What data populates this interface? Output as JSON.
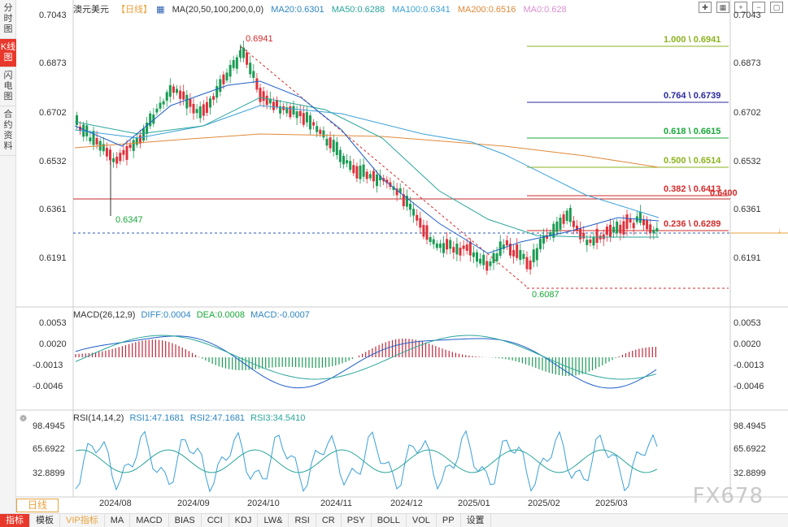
{
  "side_tabs": [
    "分时图",
    "K线图",
    "闪电图",
    "合约资料"
  ],
  "side_tab_active": 1,
  "header": {
    "symbol": "澳元美元",
    "timeframe": "【日线】",
    "ma_label": "MA(20,50,100,200,0,0)",
    "ma20": "MA20:0.6301",
    "ma50": "MA50:0.6288",
    "ma100": "MA100:0.6341",
    "ma200": "MA200:0.6516",
    "ma0": "MA0:0.628"
  },
  "price_axis": [
    "0.7043",
    "0.6873",
    "0.6702",
    "0.6532",
    "0.6361",
    "0.6191"
  ],
  "fib_levels": [
    {
      "label": "1.000 \\ 0.6941",
      "color": "#8bb31d"
    },
    {
      "label": "0.764 \\ 0.6739",
      "color": "#2a2a9e"
    },
    {
      "label": "0.618 \\ 0.6615",
      "color": "#19a83a"
    },
    {
      "label": "0.500 \\ 0.6514",
      "color": "#8bb31d"
    },
    {
      "label": "0.382 \\ 0.6413",
      "color": "#d42b2b"
    },
    {
      "label": "0.236 \\ 0.6289",
      "color": "#d42b2b"
    }
  ],
  "extra_level": "0.6400",
  "annotations": {
    "high": "0.6941",
    "low1": "0.6347",
    "low2": "0.6087"
  },
  "macd": {
    "title": "MACD(26,12,9)",
    "diff": "DIFF:0.0004",
    "dea": "DEA:0.0008",
    "macd": "MACD:-0.0007",
    "axis": [
      "0.0053",
      "0.0020",
      "-0.0013",
      "-0.0046"
    ]
  },
  "rsi": {
    "title": "RSI(14,14,2)",
    "rsi1": "RSI1:47.1681",
    "rsi2": "RSI2:47.1681",
    "rsi3": "RSI3:34.5410",
    "axis": [
      "98.4945",
      "65.6922",
      "32.8899"
    ]
  },
  "x_axis": [
    "2024/08",
    "2024/09",
    "2024/10",
    "2024/11",
    "2024/12",
    "2025/01",
    "2025/02",
    "2025/03"
  ],
  "timeframe_button": "日线",
  "watermark": "FX678",
  "bottom_tabs": [
    "指标",
    "模板",
    "VIP指标",
    "MA",
    "MACD",
    "BIAS",
    "CCI",
    "KDJ",
    "LW&",
    "RSI",
    "CR",
    "PSY",
    "BOLL",
    "VOL",
    "PP",
    "设置"
  ],
  "bottom_tab_active": 0,
  "colors": {
    "up": "#e0303a",
    "down": "#1a9b53",
    "ma20": "#1e5fc8",
    "ma50": "#2aa59a",
    "ma100": "#3aa0d8",
    "ma200": "#e0893a",
    "accent": "#e8382b"
  },
  "icons": [
    "crosshair-icon",
    "grid-icon",
    "zoom-in-icon",
    "zoom-out-icon",
    "fullscreen-icon"
  ]
}
